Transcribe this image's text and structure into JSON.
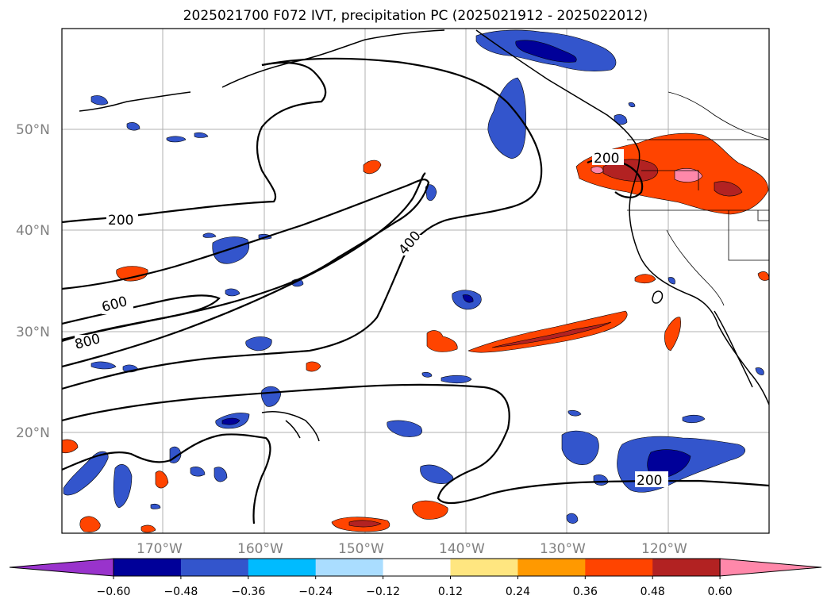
{
  "title": "2025021700 F072 IVT, precipitation PC (2025021912 - 2025022012)",
  "lat_labels": [
    "50°N",
    "40°N",
    "30°N",
    "20°N"
  ],
  "lon_labels": [
    "170°W",
    "160°W",
    "150°W",
    "140°W",
    "130°W",
    "120°W"
  ],
  "contour_labels": [
    "200",
    "600",
    "800",
    "400",
    "200",
    "200"
  ],
  "colorbar": {
    "colors": [
      "#9933cc",
      "#000099",
      "#3355cc",
      "#00bbff",
      "#aaddff",
      "#ffffff",
      "#ffe680",
      "#ff9900",
      "#ff4400",
      "#b22222",
      "#ff88aa"
    ],
    "tick_labels": [
      "−0.60",
      "−0.48",
      "−0.36",
      "−0.24",
      "−0.12",
      "0.12",
      "0.24",
      "0.36",
      "0.48",
      "0.60"
    ]
  }
}
